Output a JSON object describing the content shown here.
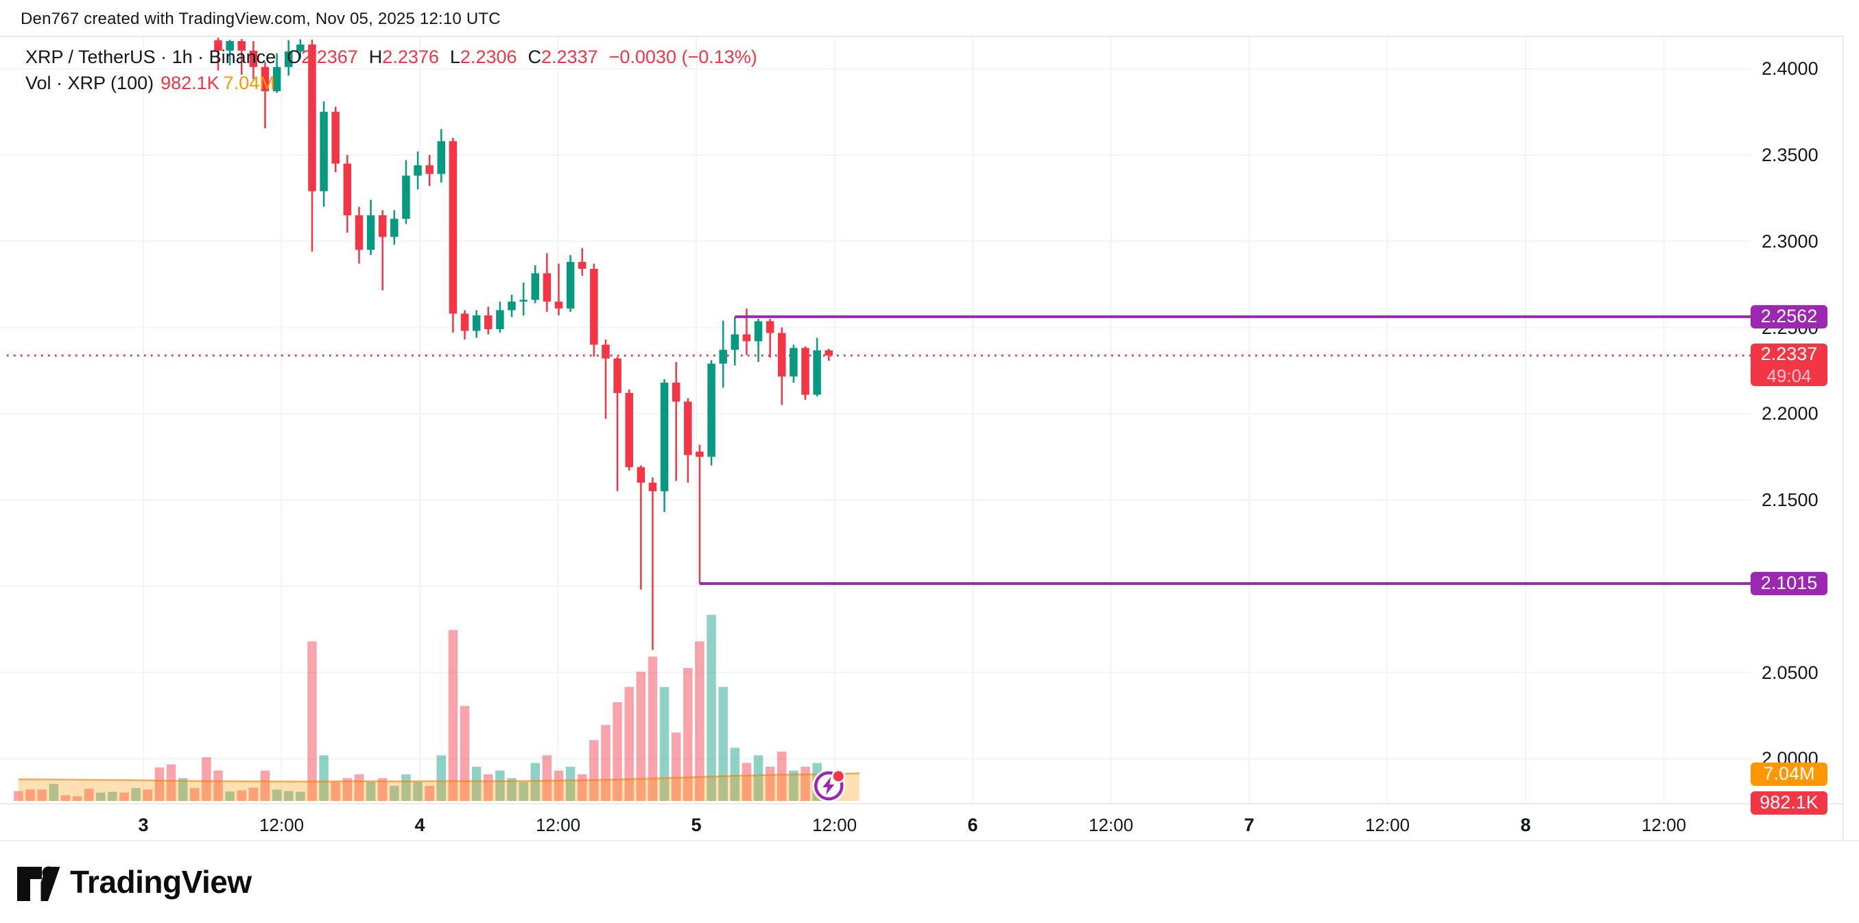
{
  "header": {
    "title": "Den767 created with TradingView.com, Nov 05, 2025 12:10 UTC"
  },
  "legend": {
    "row1": {
      "pair_line": "XRP / TetherUS · 1h · Binance",
      "o_label": "O",
      "o_value": "2.2367",
      "h_label": "H",
      "h_value": "2.2376",
      "l_label": "L",
      "l_value": "2.2306",
      "c_label": "C",
      "c_value": "2.2337",
      "change": "−0.0030 (−0.13%)"
    },
    "row2": {
      "label": "Vol · XRP (100)",
      "volume_value": "982.1K",
      "volume_ma_value": "7.04M"
    }
  },
  "price_axis": {
    "ticks": [
      {
        "label": "2.4000",
        "price": 2.4
      },
      {
        "label": "2.3500",
        "price": 2.35
      },
      {
        "label": "2.3000",
        "price": 2.3
      },
      {
        "label": "2.2500",
        "price": 2.25
      },
      {
        "label": "2.2000",
        "price": 2.2
      },
      {
        "label": "2.1500",
        "price": 2.15
      },
      {
        "label": "2.1000",
        "price": 2.1
      },
      {
        "label": "2.0500",
        "price": 2.05
      },
      {
        "label": "2.0000",
        "price": 2.0
      }
    ],
    "badges": {
      "level_high": "2.2562",
      "last_price": "2.2337",
      "countdown": "49:04",
      "level_low": "2.1015",
      "volume_ma": "7.04M",
      "volume": "982.1K"
    }
  },
  "time_axis": {
    "ticks": [
      {
        "label": "3",
        "day": true
      },
      {
        "label": "12:00",
        "day": false
      },
      {
        "label": "4",
        "day": true
      },
      {
        "label": "12:00",
        "day": false
      },
      {
        "label": "5",
        "day": true
      },
      {
        "label": "12:00",
        "day": false
      },
      {
        "label": "6",
        "day": true
      },
      {
        "label": "12:00",
        "day": false
      },
      {
        "label": "7",
        "day": true
      },
      {
        "label": "12:00",
        "day": false
      },
      {
        "label": "8",
        "day": true
      },
      {
        "label": "12:00",
        "day": false
      }
    ]
  },
  "branding": {
    "logo_text": "TradingView"
  },
  "colors": {
    "up": "#089981",
    "down": "#f23645",
    "vol_up": "rgba(8,153,129,0.45)",
    "vol_down": "rgba(242,54,69,0.45)",
    "vol_ma_fill": "rgba(255,152,0,0.30)",
    "vol_ma_line": "rgba(245,124,0,0.6)",
    "purple": "#9c27b0",
    "grid": "#f0f3fa",
    "border": "#e0e3eb",
    "text": "#131722"
  },
  "chart_data": {
    "type": "candlestick",
    "symbol": "XRP / TetherUS",
    "exchange": "Binance",
    "interval": "1h",
    "start_time": "2025-11-03 08:00 UTC",
    "interval_hours": 1,
    "ylim": [
      2.0,
      2.42
    ],
    "ohlc": [
      [
        2.4165,
        2.418,
        2.399,
        2.4105
      ],
      [
        2.4105,
        2.4168,
        2.402,
        2.416
      ],
      [
        2.416,
        2.4172,
        2.3965,
        2.4105
      ],
      [
        2.4105,
        2.416,
        2.394,
        2.401
      ],
      [
        2.401,
        2.404,
        2.3655,
        2.387
      ],
      [
        2.387,
        2.409,
        2.386,
        2.401
      ],
      [
        2.401,
        2.4165,
        2.396,
        2.41
      ],
      [
        2.41,
        2.417,
        2.406,
        2.414
      ],
      [
        2.414,
        2.4168,
        2.294,
        2.329
      ],
      [
        2.329,
        2.381,
        2.32,
        2.375
      ],
      [
        2.375,
        2.378,
        2.34,
        2.345
      ],
      [
        2.345,
        2.35,
        2.305,
        2.315
      ],
      [
        2.315,
        2.32,
        2.287,
        2.295
      ],
      [
        2.295,
        2.324,
        2.292,
        2.315
      ],
      [
        2.315,
        2.318,
        2.2715,
        2.3025
      ],
      [
        2.3025,
        2.318,
        2.298,
        2.313
      ],
      [
        2.313,
        2.347,
        2.31,
        2.338
      ],
      [
        2.338,
        2.352,
        2.33,
        2.344
      ],
      [
        2.344,
        2.35,
        2.332,
        2.339
      ],
      [
        2.339,
        2.365,
        2.334,
        2.358
      ],
      [
        2.358,
        2.36,
        2.247,
        2.258
      ],
      [
        2.258,
        2.26,
        2.243,
        2.248
      ],
      [
        2.248,
        2.26,
        2.244,
        2.257
      ],
      [
        2.257,
        2.262,
        2.246,
        2.249
      ],
      [
        2.249,
        2.265,
        2.247,
        2.26
      ],
      [
        2.26,
        2.269,
        2.256,
        2.265
      ],
      [
        2.265,
        2.276,
        2.257,
        2.266
      ],
      [
        2.266,
        2.286,
        2.264,
        2.2814
      ],
      [
        2.2814,
        2.293,
        2.259,
        2.265
      ],
      [
        2.265,
        2.287,
        2.257,
        2.261
      ],
      [
        2.261,
        2.292,
        2.259,
        2.288
      ],
      [
        2.288,
        2.296,
        2.28,
        2.284
      ],
      [
        2.284,
        2.287,
        2.233,
        2.24
      ],
      [
        2.24,
        2.243,
        2.197,
        2.232
      ],
      [
        2.232,
        2.233,
        2.155,
        2.212
      ],
      [
        2.212,
        2.214,
        2.167,
        2.169
      ],
      [
        2.169,
        2.17,
        2.098,
        2.16
      ],
      [
        2.16,
        2.163,
        2.063,
        2.155
      ],
      [
        2.155,
        2.22,
        2.143,
        2.218
      ],
      [
        2.218,
        2.23,
        2.161,
        2.207
      ],
      [
        2.207,
        2.209,
        2.16,
        2.176
      ],
      [
        2.178,
        2.182,
        2.1015,
        2.175
      ],
      [
        2.175,
        2.231,
        2.17,
        2.229
      ],
      [
        2.229,
        2.254,
        2.215,
        2.237
      ],
      [
        2.237,
        2.2562,
        2.228,
        2.246
      ],
      [
        2.246,
        2.261,
        2.234,
        2.242
      ],
      [
        2.242,
        2.255,
        2.23,
        2.2536
      ],
      [
        2.2536,
        2.255,
        2.2325,
        2.2468
      ],
      [
        2.2468,
        2.25,
        2.205,
        2.2216
      ],
      [
        2.2216,
        2.24,
        2.218,
        2.2381
      ],
      [
        2.2381,
        2.239,
        2.208,
        2.211
      ],
      [
        2.211,
        2.244,
        2.21,
        2.2367
      ],
      [
        2.2367,
        2.2376,
        2.2306,
        2.2337
      ]
    ],
    "volumes_m": [
      8,
      2.5,
      2.8,
      3.5,
      8,
      3,
      2.6,
      2.4,
      42,
      12,
      5,
      6,
      7,
      5,
      6,
      4,
      7,
      5,
      4,
      12,
      45,
      25,
      9,
      7,
      8,
      6,
      5,
      10,
      12,
      8,
      9,
      7,
      16,
      20,
      26,
      30,
      34,
      38,
      30,
      18,
      35,
      42,
      49,
      30,
      14,
      10,
      12,
      9,
      13,
      8,
      9,
      10,
      0.98
    ],
    "lead_in_volumes": [
      {
        "dir": "down",
        "v": 2.6
      },
      {
        "dir": "down",
        "v": 3.0
      },
      {
        "dir": "down",
        "v": 3.0
      },
      {
        "dir": "up",
        "v": 4.5
      },
      {
        "dir": "down",
        "v": 1.5
      },
      {
        "dir": "down",
        "v": 1.2
      },
      {
        "dir": "down",
        "v": 3.2
      },
      {
        "dir": "up",
        "v": 2.2
      },
      {
        "dir": "up",
        "v": 2.4
      },
      {
        "dir": "down",
        "v": 2.2
      },
      {
        "dir": "up",
        "v": 3.4
      },
      {
        "dir": "down",
        "v": 3.0
      },
      {
        "dir": "down",
        "v": 8.8
      },
      {
        "dir": "down",
        "v": 9.6
      },
      {
        "dir": "up",
        "v": 6.0
      },
      {
        "dir": "down",
        "v": 3.4
      },
      {
        "dir": "down",
        "v": 11.5
      }
    ],
    "volume_ma_points": [
      [
        -17,
        5.7
      ],
      [
        -12,
        5.6
      ],
      [
        -8,
        5.5
      ],
      [
        -4,
        5.3
      ],
      [
        0,
        5.2
      ],
      [
        4,
        5.15
      ],
      [
        8,
        5.1
      ],
      [
        12,
        5.2
      ],
      [
        16,
        5.15
      ],
      [
        20,
        5.25
      ],
      [
        24,
        5.2
      ],
      [
        28,
        5.3
      ],
      [
        32,
        5.5
      ],
      [
        36,
        5.8
      ],
      [
        40,
        6.2
      ],
      [
        44,
        6.6
      ],
      [
        48,
        6.9
      ],
      [
        52,
        7.04
      ],
      [
        54.6,
        7.3
      ]
    ],
    "volume_unit": "M",
    "price_lines": [
      {
        "price": 2.2562,
        "start_index": 44,
        "color": "#9c27b0"
      },
      {
        "price": 2.1015,
        "start_index": 41,
        "color": "#9c27b0"
      }
    ],
    "last_price_line": {
      "price": 2.2337,
      "style": "dotted",
      "color": "#f23645"
    },
    "grid": true,
    "legend_position": "top-left"
  }
}
